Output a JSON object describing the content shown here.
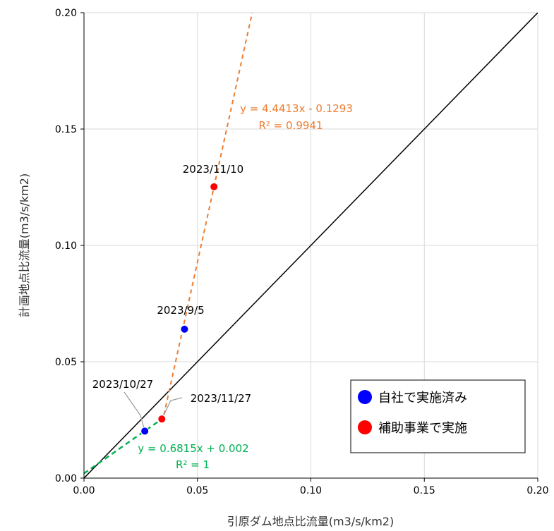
{
  "chart_data": {
    "type": "scatter",
    "xlabel": "引原ダム地点比流量(m3/s/km2)",
    "ylabel": "計画地点比流量(m3/s/km2)",
    "xlim": [
      0,
      0.2
    ],
    "ylim": [
      0,
      0.2
    ],
    "x_ticks": [
      "0.00",
      "0.05",
      "0.10",
      "0.15",
      "0.20"
    ],
    "y_ticks": [
      "0.00",
      "0.05",
      "0.10",
      "0.15",
      "0.20"
    ],
    "grid": true,
    "legend_position": "bottom-right",
    "series": [
      {
        "name": "自社で実施済み",
        "color": "#0000ff",
        "points": [
          {
            "x": 0.0443,
            "y": 0.064,
            "label": "2023/9/5"
          },
          {
            "x": 0.0268,
            "y": 0.0202,
            "label": "2023/10/27"
          }
        ]
      },
      {
        "name": "補助事業で実施",
        "color": "#ff0000",
        "points": [
          {
            "x": 0.0573,
            "y": 0.1252,
            "label": "2023/11/10"
          },
          {
            "x": 0.0343,
            "y": 0.0254,
            "label": "2023/11/27"
          }
        ]
      }
    ],
    "reference_line": {
      "slope": 1.0,
      "intercept": 0.0,
      "color": "#000000"
    },
    "trendlines": [
      {
        "equation": "y = 4.4413x - 0.1293",
        "r2": "R² = 0.9941",
        "slope": 4.4413,
        "intercept": -0.1293,
        "color": "#ed7d31"
      },
      {
        "equation": "y = 0.6815x + 0.002",
        "r2": "R² = 1",
        "slope": 0.6815,
        "intercept": 0.002,
        "color": "#00b050"
      }
    ]
  }
}
